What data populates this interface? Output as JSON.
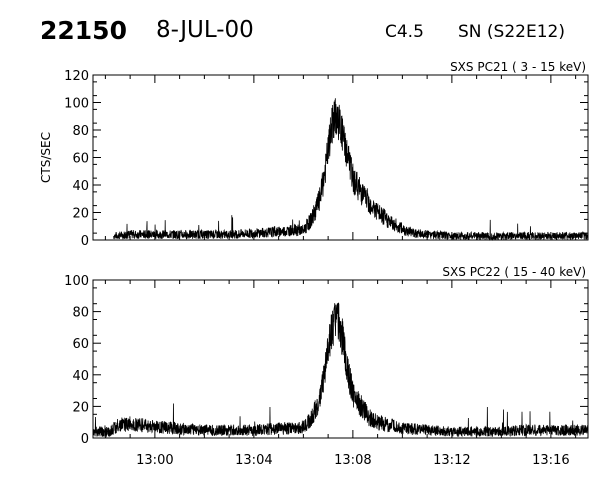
{
  "header": {
    "event_id": "22150",
    "date": "8-JUL-00",
    "flare_class": "C4.5",
    "location": "SN (S22E12)"
  },
  "chart_data": [
    {
      "type": "line",
      "title": "SXS PC21  (  3 - 15 keV)",
      "ylabel": "CTS/SEC",
      "xlabel": "",
      "xlim": [
        "12:57:30",
        "13:17:30"
      ],
      "ylim": [
        0,
        120
      ],
      "yticks": [
        0,
        20,
        40,
        60,
        80,
        100,
        120
      ],
      "xticks": [
        "13:00",
        "13:04",
        "13:08",
        "13:12",
        "13:16"
      ],
      "show_x_tick_labels": false,
      "series": [
        {
          "x": [
            "12:58:20",
            "12:59:00",
            "13:00:00",
            "13:01:00",
            "13:02:00",
            "13:03:00",
            "13:04:00",
            "13:05:00",
            "13:05:30",
            "13:06:00",
            "13:06:20",
            "13:06:40",
            "13:06:50",
            "13:07:00",
            "13:07:10",
            "13:07:20",
            "13:07:30",
            "13:07:40",
            "13:07:50",
            "13:08:00",
            "13:08:20",
            "13:08:40",
            "13:09:00",
            "13:09:30",
            "13:10:00",
            "13:10:30",
            "13:11:00",
            "13:12:00",
            "13:13:00",
            "13:14:00",
            "13:15:00",
            "13:16:00",
            "13:17:00",
            "13:17:30"
          ],
          "values": [
            3,
            4,
            4,
            4,
            4,
            4,
            5,
            6,
            7,
            7,
            15,
            30,
            45,
            65,
            85,
            90,
            82,
            70,
            58,
            45,
            35,
            27,
            20,
            13,
            8,
            5,
            4,
            3,
            3,
            3,
            3,
            3,
            3,
            3
          ]
        }
      ]
    },
    {
      "type": "line",
      "title": "SXS PC22  ( 15 - 40 keV)",
      "ylabel": "",
      "xlabel": "",
      "xlim": [
        "12:57:30",
        "13:17:30"
      ],
      "ylim": [
        0,
        100
      ],
      "yticks": [
        0,
        20,
        40,
        60,
        80,
        100
      ],
      "xticks": [
        "13:00",
        "13:04",
        "13:08",
        "13:12",
        "13:16"
      ],
      "show_x_tick_labels": true,
      "series": [
        {
          "x": [
            "12:57:30",
            "12:58:10",
            "12:58:30",
            "12:59:00",
            "13:00:00",
            "13:01:00",
            "13:02:00",
            "13:03:00",
            "13:04:00",
            "13:05:00",
            "13:05:30",
            "13:06:00",
            "13:06:20",
            "13:06:40",
            "13:06:50",
            "13:07:00",
            "13:07:10",
            "13:07:20",
            "13:07:30",
            "13:07:40",
            "13:07:50",
            "13:08:00",
            "13:08:20",
            "13:08:40",
            "13:09:00",
            "13:09:30",
            "13:10:00",
            "13:11:00",
            "13:12:00",
            "13:13:00",
            "13:14:00",
            "13:15:00",
            "13:16:00",
            "13:17:00",
            "13:17:30"
          ],
          "values": [
            4,
            4,
            8,
            9,
            7,
            6,
            5,
            5,
            5,
            6,
            6,
            7,
            12,
            25,
            40,
            55,
            70,
            75,
            70,
            55,
            40,
            28,
            20,
            13,
            10,
            8,
            6,
            5,
            4,
            4,
            4,
            5,
            5,
            5,
            5
          ]
        }
      ]
    }
  ]
}
